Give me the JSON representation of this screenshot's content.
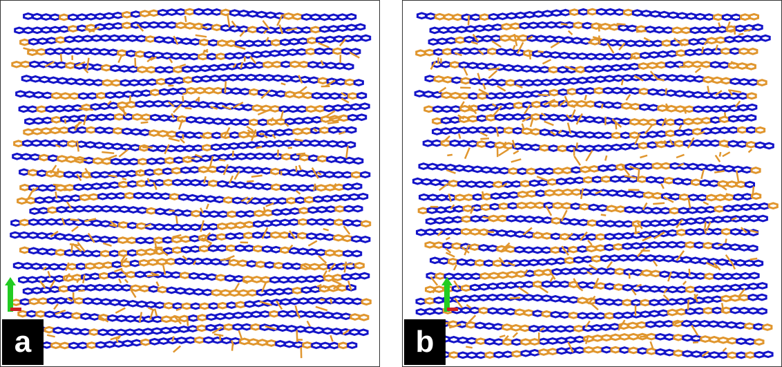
{
  "panels": [
    {
      "label": "a"
    },
    {
      "label": "b"
    }
  ],
  "colors": {
    "graphene_layers": "#1414c8",
    "molecules": "#e0962e",
    "label_background": "#000000",
    "label_text": "#ffffff",
    "axis_y": "#22cc22",
    "axis_x": "#cc2222"
  },
  "icons": [
    "axis-triad-icon"
  ]
}
